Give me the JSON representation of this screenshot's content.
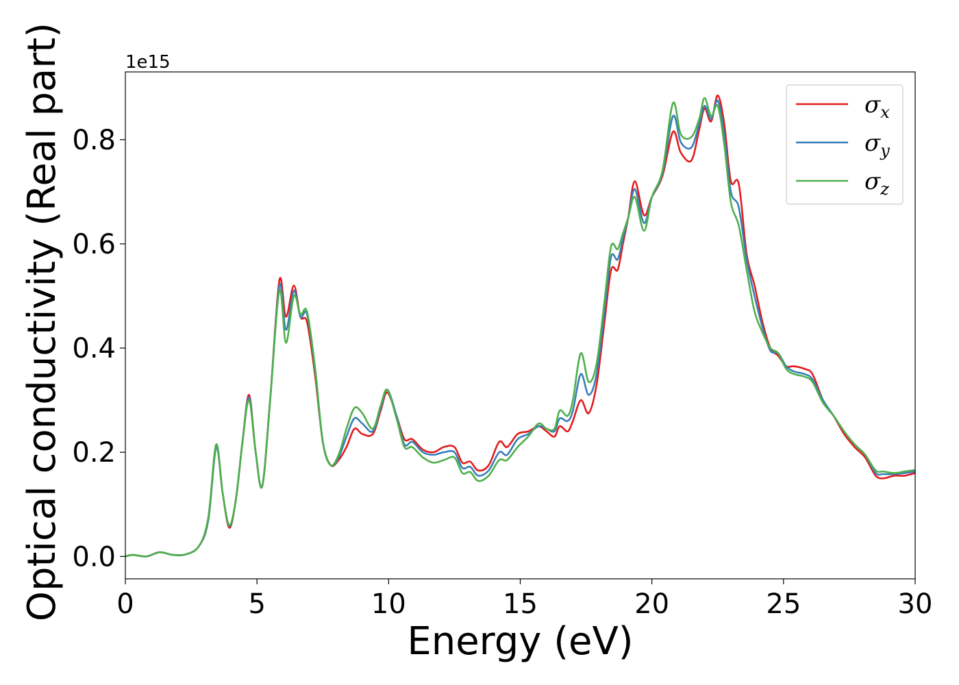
{
  "chart_data": {
    "type": "line",
    "xlabel": "Energy (eV)",
    "ylabel": "Optical conductivity (Real part)",
    "y_offset_label": "1e15",
    "xlim": [
      0,
      30
    ],
    "ylim": [
      -0.043,
      0.93
    ],
    "xticks": [
      0,
      5,
      10,
      15,
      20,
      25,
      30
    ],
    "xtick_labels": [
      "0",
      "5",
      "10",
      "15",
      "20",
      "25",
      "30"
    ],
    "yticks": [
      0.0,
      0.2,
      0.4,
      0.6,
      0.8
    ],
    "ytick_labels": [
      "0.0",
      "0.2",
      "0.4",
      "0.6",
      "0.8"
    ],
    "grid": false,
    "legend_position": "top-right",
    "series": [
      {
        "name": "σx",
        "legend_base": "σ",
        "legend_sub": "x",
        "color": "#e41a1c",
        "points": [
          [
            0,
            0.0
          ],
          [
            0.3,
            0.003
          ],
          [
            0.8,
            0.0
          ],
          [
            1.3,
            0.008
          ],
          [
            1.8,
            0.003
          ],
          [
            2.3,
            0.004
          ],
          [
            2.8,
            0.02
          ],
          [
            3.15,
            0.07
          ],
          [
            3.45,
            0.21
          ],
          [
            3.7,
            0.12
          ],
          [
            3.95,
            0.055
          ],
          [
            4.2,
            0.11
          ],
          [
            4.45,
            0.22
          ],
          [
            4.7,
            0.31
          ],
          [
            4.95,
            0.2
          ],
          [
            5.2,
            0.135
          ],
          [
            5.5,
            0.3
          ],
          [
            5.85,
            0.53
          ],
          [
            6.1,
            0.46
          ],
          [
            6.4,
            0.52
          ],
          [
            6.65,
            0.46
          ],
          [
            6.9,
            0.45
          ],
          [
            7.2,
            0.35
          ],
          [
            7.5,
            0.22
          ],
          [
            7.8,
            0.175
          ],
          [
            8.1,
            0.185
          ],
          [
            8.4,
            0.21
          ],
          [
            8.7,
            0.245
          ],
          [
            9.0,
            0.235
          ],
          [
            9.4,
            0.235
          ],
          [
            9.7,
            0.28
          ],
          [
            9.95,
            0.315
          ],
          [
            10.3,
            0.27
          ],
          [
            10.6,
            0.225
          ],
          [
            10.9,
            0.225
          ],
          [
            11.3,
            0.205
          ],
          [
            11.7,
            0.2
          ],
          [
            12.1,
            0.21
          ],
          [
            12.5,
            0.21
          ],
          [
            12.8,
            0.18
          ],
          [
            13.1,
            0.182
          ],
          [
            13.4,
            0.165
          ],
          [
            13.8,
            0.175
          ],
          [
            14.2,
            0.22
          ],
          [
            14.5,
            0.21
          ],
          [
            14.9,
            0.235
          ],
          [
            15.3,
            0.24
          ],
          [
            15.7,
            0.25
          ],
          [
            16.0,
            0.24
          ],
          [
            16.3,
            0.23
          ],
          [
            16.5,
            0.25
          ],
          [
            16.8,
            0.24
          ],
          [
            17.0,
            0.26
          ],
          [
            17.3,
            0.3
          ],
          [
            17.6,
            0.275
          ],
          [
            17.9,
            0.33
          ],
          [
            18.2,
            0.45
          ],
          [
            18.45,
            0.55
          ],
          [
            18.7,
            0.55
          ],
          [
            18.9,
            0.6
          ],
          [
            19.1,
            0.65
          ],
          [
            19.35,
            0.72
          ],
          [
            19.7,
            0.655
          ],
          [
            20.0,
            0.69
          ],
          [
            20.4,
            0.73
          ],
          [
            20.8,
            0.815
          ],
          [
            21.1,
            0.775
          ],
          [
            21.5,
            0.76
          ],
          [
            21.8,
            0.82
          ],
          [
            22.0,
            0.86
          ],
          [
            22.25,
            0.835
          ],
          [
            22.5,
            0.885
          ],
          [
            22.75,
            0.83
          ],
          [
            23.0,
            0.72
          ],
          [
            23.3,
            0.715
          ],
          [
            23.6,
            0.58
          ],
          [
            23.9,
            0.52
          ],
          [
            24.2,
            0.45
          ],
          [
            24.5,
            0.4
          ],
          [
            24.8,
            0.385
          ],
          [
            25.1,
            0.365
          ],
          [
            25.4,
            0.365
          ],
          [
            25.8,
            0.36
          ],
          [
            26.1,
            0.35
          ],
          [
            26.5,
            0.3
          ],
          [
            26.9,
            0.27
          ],
          [
            27.3,
            0.235
          ],
          [
            27.7,
            0.21
          ],
          [
            28.1,
            0.19
          ],
          [
            28.5,
            0.155
          ],
          [
            28.8,
            0.15
          ],
          [
            29.2,
            0.155
          ],
          [
            29.6,
            0.155
          ],
          [
            30.0,
            0.16
          ]
        ]
      },
      {
        "name": "σy",
        "legend_base": "σ",
        "legend_sub": "y",
        "color": "#377eb8",
        "points": [
          [
            0,
            0.0
          ],
          [
            0.3,
            0.003
          ],
          [
            0.8,
            0.0
          ],
          [
            1.3,
            0.008
          ],
          [
            1.8,
            0.003
          ],
          [
            2.3,
            0.004
          ],
          [
            2.8,
            0.02
          ],
          [
            3.15,
            0.07
          ],
          [
            3.45,
            0.21
          ],
          [
            3.7,
            0.12
          ],
          [
            3.95,
            0.058
          ],
          [
            4.2,
            0.11
          ],
          [
            4.45,
            0.22
          ],
          [
            4.7,
            0.305
          ],
          [
            4.95,
            0.2
          ],
          [
            5.2,
            0.135
          ],
          [
            5.5,
            0.3
          ],
          [
            5.85,
            0.52
          ],
          [
            6.1,
            0.435
          ],
          [
            6.4,
            0.51
          ],
          [
            6.65,
            0.46
          ],
          [
            6.9,
            0.465
          ],
          [
            7.2,
            0.36
          ],
          [
            7.5,
            0.22
          ],
          [
            7.8,
            0.175
          ],
          [
            8.1,
            0.19
          ],
          [
            8.4,
            0.23
          ],
          [
            8.7,
            0.265
          ],
          [
            9.0,
            0.255
          ],
          [
            9.4,
            0.24
          ],
          [
            9.7,
            0.285
          ],
          [
            9.95,
            0.32
          ],
          [
            10.3,
            0.27
          ],
          [
            10.6,
            0.215
          ],
          [
            10.9,
            0.22
          ],
          [
            11.3,
            0.2
          ],
          [
            11.7,
            0.195
          ],
          [
            12.1,
            0.2
          ],
          [
            12.5,
            0.2
          ],
          [
            12.8,
            0.17
          ],
          [
            13.1,
            0.172
          ],
          [
            13.4,
            0.155
          ],
          [
            13.8,
            0.165
          ],
          [
            14.2,
            0.2
          ],
          [
            14.5,
            0.195
          ],
          [
            14.9,
            0.225
          ],
          [
            15.3,
            0.235
          ],
          [
            15.7,
            0.25
          ],
          [
            16.0,
            0.245
          ],
          [
            16.3,
            0.24
          ],
          [
            16.5,
            0.265
          ],
          [
            16.8,
            0.26
          ],
          [
            17.0,
            0.28
          ],
          [
            17.3,
            0.35
          ],
          [
            17.6,
            0.31
          ],
          [
            17.9,
            0.35
          ],
          [
            18.2,
            0.47
          ],
          [
            18.45,
            0.575
          ],
          [
            18.7,
            0.57
          ],
          [
            18.9,
            0.61
          ],
          [
            19.1,
            0.65
          ],
          [
            19.35,
            0.705
          ],
          [
            19.7,
            0.64
          ],
          [
            20.0,
            0.69
          ],
          [
            20.4,
            0.735
          ],
          [
            20.8,
            0.845
          ],
          [
            21.1,
            0.795
          ],
          [
            21.5,
            0.785
          ],
          [
            21.8,
            0.83
          ],
          [
            22.0,
            0.865
          ],
          [
            22.25,
            0.84
          ],
          [
            22.5,
            0.875
          ],
          [
            22.75,
            0.81
          ],
          [
            23.0,
            0.7
          ],
          [
            23.3,
            0.67
          ],
          [
            23.6,
            0.57
          ],
          [
            23.9,
            0.5
          ],
          [
            24.2,
            0.44
          ],
          [
            24.5,
            0.395
          ],
          [
            24.8,
            0.39
          ],
          [
            25.1,
            0.365
          ],
          [
            25.4,
            0.355
          ],
          [
            25.8,
            0.35
          ],
          [
            26.1,
            0.34
          ],
          [
            26.5,
            0.3
          ],
          [
            26.9,
            0.27
          ],
          [
            27.3,
            0.24
          ],
          [
            27.7,
            0.215
          ],
          [
            28.1,
            0.195
          ],
          [
            28.5,
            0.16
          ],
          [
            28.8,
            0.158
          ],
          [
            29.2,
            0.158
          ],
          [
            29.6,
            0.16
          ],
          [
            30.0,
            0.163
          ]
        ]
      },
      {
        "name": "σz",
        "legend_base": "σ",
        "legend_sub": "z",
        "color": "#4daf4a",
        "points": [
          [
            0,
            0.0
          ],
          [
            0.3,
            0.003
          ],
          [
            0.8,
            0.0
          ],
          [
            1.3,
            0.008
          ],
          [
            1.8,
            0.003
          ],
          [
            2.3,
            0.004
          ],
          [
            2.8,
            0.02
          ],
          [
            3.15,
            0.075
          ],
          [
            3.45,
            0.215
          ],
          [
            3.7,
            0.12
          ],
          [
            3.95,
            0.06
          ],
          [
            4.2,
            0.11
          ],
          [
            4.45,
            0.22
          ],
          [
            4.7,
            0.3
          ],
          [
            4.95,
            0.2
          ],
          [
            5.2,
            0.135
          ],
          [
            5.5,
            0.3
          ],
          [
            5.85,
            0.51
          ],
          [
            6.1,
            0.41
          ],
          [
            6.4,
            0.5
          ],
          [
            6.65,
            0.465
          ],
          [
            6.9,
            0.47
          ],
          [
            7.2,
            0.365
          ],
          [
            7.5,
            0.22
          ],
          [
            7.8,
            0.175
          ],
          [
            8.1,
            0.195
          ],
          [
            8.4,
            0.245
          ],
          [
            8.7,
            0.285
          ],
          [
            9.0,
            0.275
          ],
          [
            9.4,
            0.245
          ],
          [
            9.7,
            0.29
          ],
          [
            9.95,
            0.32
          ],
          [
            10.3,
            0.265
          ],
          [
            10.6,
            0.21
          ],
          [
            10.9,
            0.21
          ],
          [
            11.3,
            0.19
          ],
          [
            11.7,
            0.18
          ],
          [
            12.1,
            0.185
          ],
          [
            12.5,
            0.19
          ],
          [
            12.8,
            0.16
          ],
          [
            13.1,
            0.162
          ],
          [
            13.4,
            0.145
          ],
          [
            13.8,
            0.155
          ],
          [
            14.2,
            0.185
          ],
          [
            14.5,
            0.185
          ],
          [
            14.9,
            0.21
          ],
          [
            15.3,
            0.23
          ],
          [
            15.7,
            0.255
          ],
          [
            16.0,
            0.245
          ],
          [
            16.3,
            0.245
          ],
          [
            16.5,
            0.28
          ],
          [
            16.8,
            0.27
          ],
          [
            17.0,
            0.3
          ],
          [
            17.3,
            0.39
          ],
          [
            17.6,
            0.335
          ],
          [
            17.9,
            0.37
          ],
          [
            18.2,
            0.49
          ],
          [
            18.45,
            0.595
          ],
          [
            18.7,
            0.59
          ],
          [
            18.9,
            0.62
          ],
          [
            19.1,
            0.65
          ],
          [
            19.35,
            0.69
          ],
          [
            19.7,
            0.625
          ],
          [
            20.0,
            0.69
          ],
          [
            20.4,
            0.74
          ],
          [
            20.8,
            0.87
          ],
          [
            21.1,
            0.81
          ],
          [
            21.5,
            0.805
          ],
          [
            21.8,
            0.84
          ],
          [
            22.0,
            0.88
          ],
          [
            22.25,
            0.845
          ],
          [
            22.5,
            0.865
          ],
          [
            22.75,
            0.79
          ],
          [
            23.0,
            0.68
          ],
          [
            23.3,
            0.635
          ],
          [
            23.6,
            0.55
          ],
          [
            23.9,
            0.47
          ],
          [
            24.2,
            0.43
          ],
          [
            24.5,
            0.4
          ],
          [
            24.8,
            0.39
          ],
          [
            25.1,
            0.36
          ],
          [
            25.4,
            0.35
          ],
          [
            25.8,
            0.345
          ],
          [
            26.1,
            0.335
          ],
          [
            26.5,
            0.295
          ],
          [
            26.9,
            0.27
          ],
          [
            27.3,
            0.24
          ],
          [
            27.7,
            0.215
          ],
          [
            28.1,
            0.195
          ],
          [
            28.5,
            0.165
          ],
          [
            28.8,
            0.163
          ],
          [
            29.2,
            0.16
          ],
          [
            29.6,
            0.163
          ],
          [
            30.0,
            0.166
          ]
        ]
      }
    ]
  }
}
